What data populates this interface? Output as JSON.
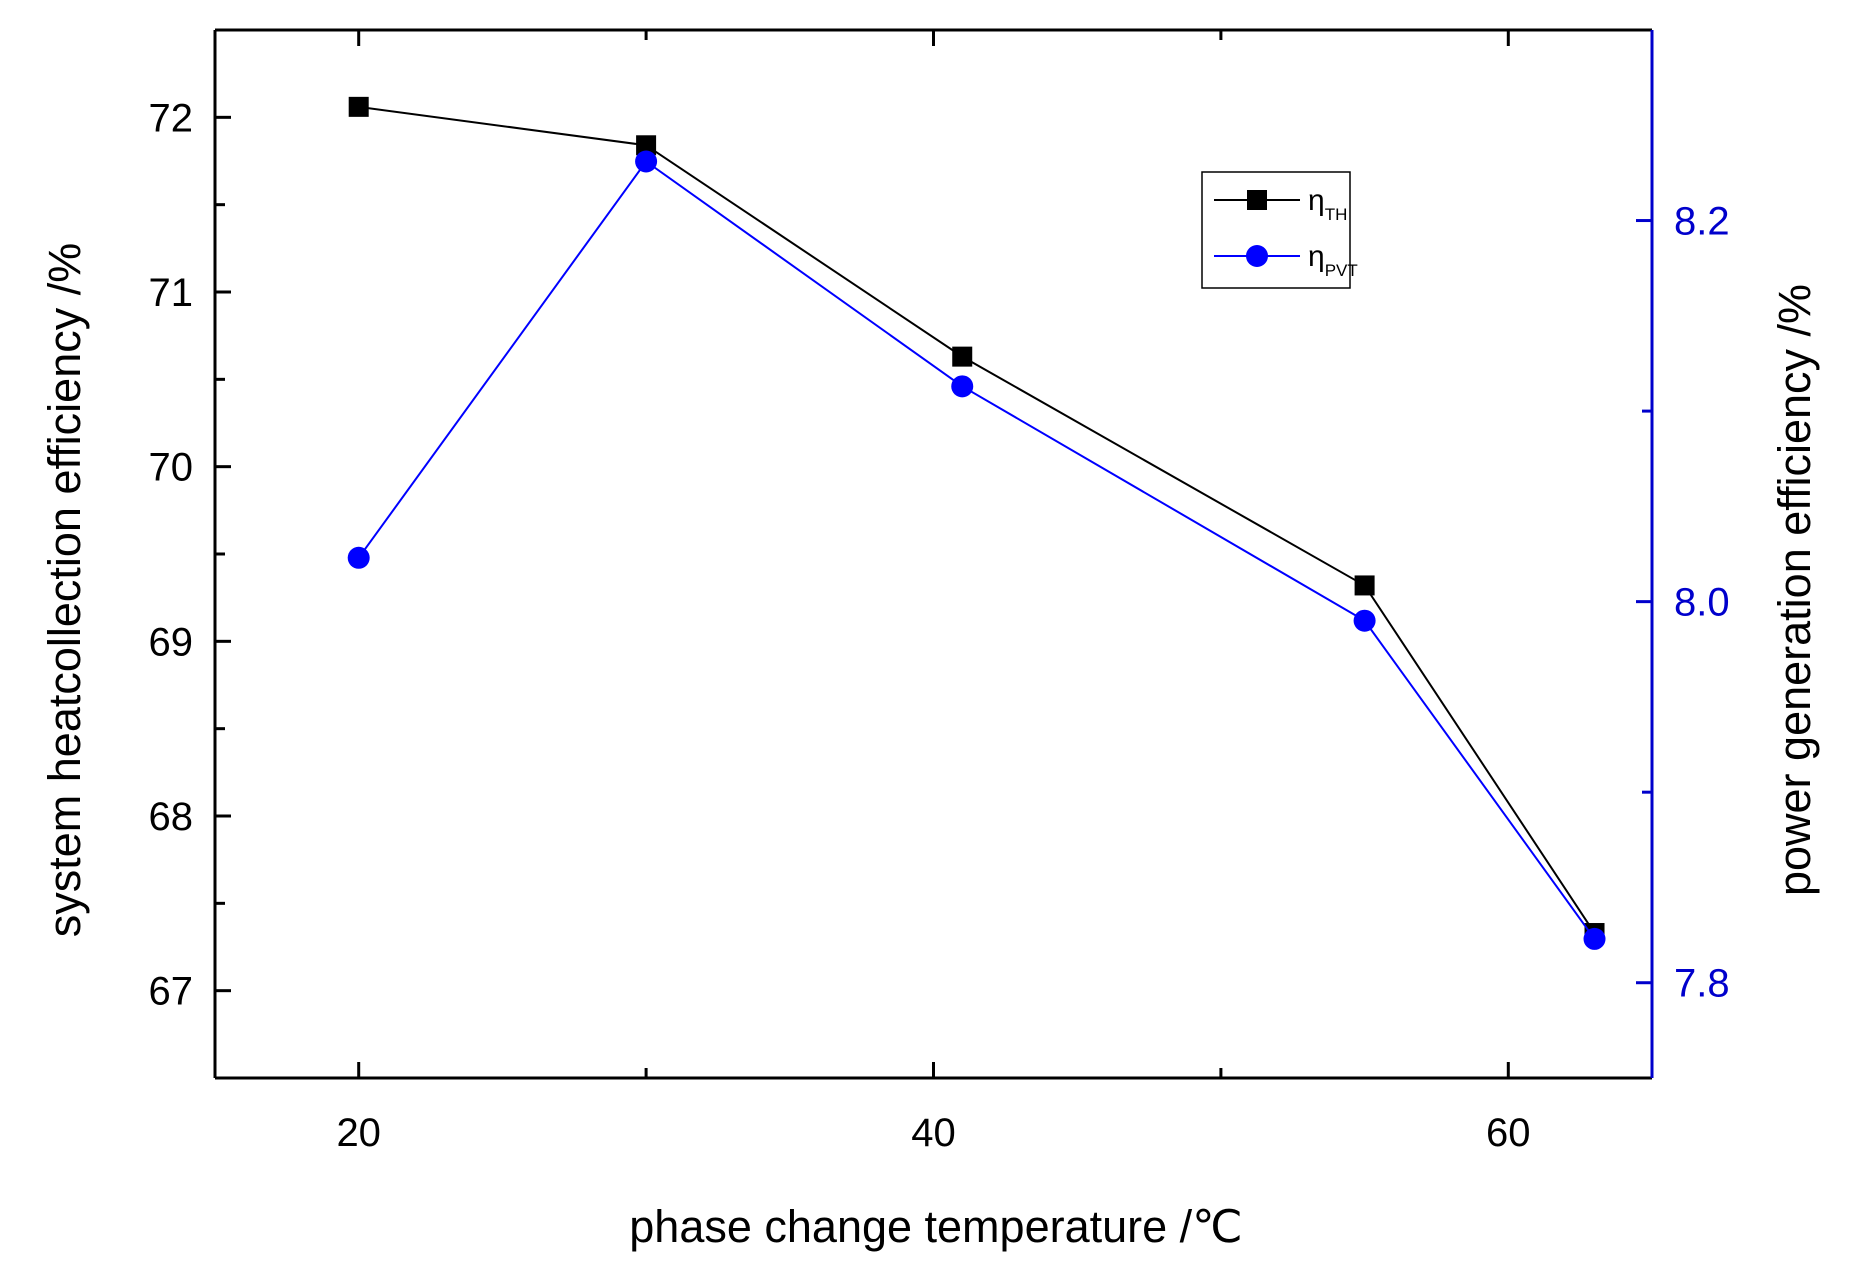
{
  "chart_data": {
    "type": "line",
    "xlabel": "phase change temperature /℃",
    "ylabel_left": "system heatcollection efficiency /%",
    "ylabel_right": "power generation efficiency /%",
    "xlim": [
      15,
      65
    ],
    "xticks": [
      20,
      40,
      60
    ],
    "ylim_left": [
      66.5,
      72.5
    ],
    "yticks_left": [
      67,
      68,
      69,
      70,
      71,
      72
    ],
    "ylim_right": [
      7.75,
      8.3
    ],
    "yticks_right": [
      7.8,
      8.0,
      8.2
    ],
    "grid": false,
    "legend_position": "top-right",
    "series": [
      {
        "name": "η",
        "subscript": "TH",
        "axis": "left",
        "marker": "square",
        "color": "#000000",
        "x": [
          20,
          30,
          41,
          55,
          63
        ],
        "y": [
          72.06,
          71.84,
          70.63,
          69.32,
          67.33
        ]
      },
      {
        "name": "η",
        "subscript": "PVT",
        "axis": "right",
        "marker": "circle",
        "color": "#0000ff",
        "x": [
          20,
          30,
          41,
          55,
          63
        ],
        "y": [
          8.023,
          8.231,
          8.113,
          7.99,
          7.823
        ]
      }
    ]
  }
}
